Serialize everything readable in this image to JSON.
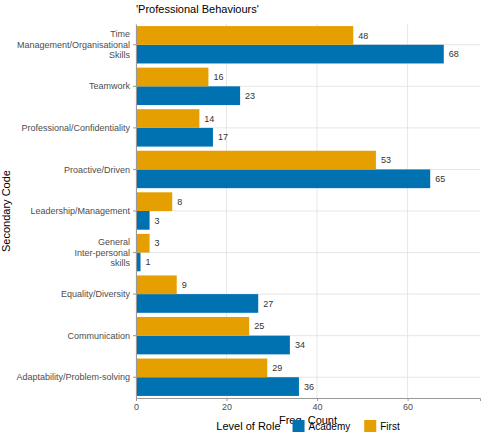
{
  "chart_data": {
    "type": "bar",
    "orientation": "horizontal",
    "title": "'Professional Behaviours'",
    "x_label": "Freq. Count",
    "y_label": "Secondary Code",
    "legend_title": "Level of Role",
    "categories": [
      "Time\nManagement/Organisational\nSkills",
      "Teamwork",
      "Professional/Confidentiality",
      "Proactive/Driven",
      "Leadership/Management",
      "General\nInter-personal\nskills",
      "Equality/Diversity",
      "Communication",
      "Adaptability/Problem-solving"
    ],
    "series": [
      {
        "name": "Academy",
        "color": "#0072B2",
        "values": [
          68,
          23,
          17,
          65,
          3,
          1,
          27,
          34,
          36
        ]
      },
      {
        "name": "First",
        "color": "#E69F00",
        "values": [
          48,
          16,
          14,
          53,
          8,
          3,
          9,
          25,
          29
        ]
      }
    ],
    "xlim": [
      0,
      76
    ],
    "xticks": [
      0,
      20,
      40,
      60
    ],
    "grid": true,
    "legend": "bottom",
    "data_labels": true
  }
}
